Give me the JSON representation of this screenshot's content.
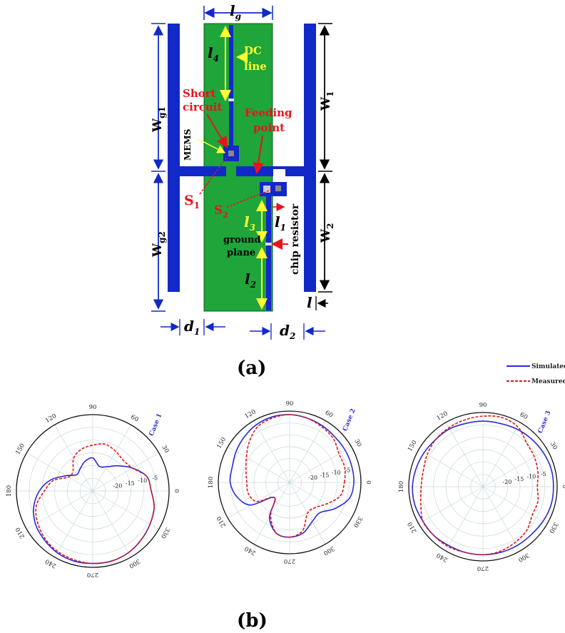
{
  "figure": {
    "panel_a_label": "(a)",
    "panel_b_label": "(b)",
    "dimensions": {
      "lg": "l",
      "lg_sub": "g",
      "l4": "l",
      "l4_sub": "4",
      "l3": "l",
      "l3_sub": "3",
      "l2": "l",
      "l2_sub": "2",
      "l1": "l",
      "l1_sub": "1",
      "l": "l",
      "wg1": "W",
      "wg1_sub": "g1",
      "wg2": "W",
      "wg2_sub": "g2",
      "w1": "W",
      "w1_sub": "1",
      "w2": "W",
      "w2_sub": "2",
      "d1": "d",
      "d1_sub": "1",
      "d2": "d",
      "d2_sub": "2"
    },
    "annotations": {
      "dc_line_1": "DC",
      "dc_line_2": "line",
      "short_circuit_1": "Short",
      "short_circuit_2": "circuit",
      "feeding_point_1": "Feeding",
      "feeding_point_2": "point",
      "mems": "MEMS",
      "s1": "S",
      "s1_sub": "1",
      "s2": "S",
      "s2_sub": "2",
      "ground_plane_1": "ground",
      "ground_plane_2": "plane",
      "chip_resistor": "chip resistor"
    },
    "colors": {
      "substrate_green": "#1fa53a",
      "metal_blue": "#1229c8",
      "label_red": "#e8141b",
      "label_yellow": "#ffff33",
      "simulated_line": "#2a2ad8",
      "measured_line": "#e01818"
    },
    "legend": {
      "simulated": "Simulated",
      "measured": "Measured"
    }
  },
  "chart_data": [
    {
      "type": "polar",
      "title": "Case 1",
      "angle_ticks": [
        "0",
        "30",
        "60",
        "90",
        "120",
        "150",
        "180",
        "210",
        "240",
        "270",
        "300",
        "330"
      ],
      "radial_ticks": [
        "-20",
        "-15",
        "-10",
        "-5"
      ],
      "rlim": [
        -30,
        0
      ],
      "grid": true,
      "series": [
        {
          "name": "Simulated",
          "angles_deg": [
            0,
            15,
            30,
            45,
            60,
            75,
            90,
            105,
            120,
            135,
            150,
            165,
            180,
            195,
            210,
            225,
            240,
            255,
            270,
            285,
            300,
            315,
            330,
            345
          ],
          "values_db": [
            -7,
            -8,
            -12,
            -16,
            -19,
            -20,
            -17,
            -18,
            -20,
            -21,
            -18,
            -13,
            -9,
            -6,
            -4,
            -3,
            -2,
            -1.5,
            -1.5,
            -1.5,
            -2,
            -3,
            -4,
            -5
          ]
        },
        {
          "name": "Measured",
          "angles_deg": [
            0,
            15,
            30,
            45,
            60,
            75,
            90,
            105,
            120,
            135,
            150,
            165,
            180,
            195,
            210,
            225,
            240,
            255,
            270,
            285,
            300,
            315,
            330,
            345
          ],
          "values_db": [
            -7,
            -8,
            -12,
            -13,
            -12,
            -11,
            -12,
            -13,
            -15,
            -19,
            -19,
            -14,
            -11,
            -7,
            -5,
            -3.5,
            -2.5,
            -2,
            -1.5,
            -1.5,
            -2,
            -3,
            -4,
            -5
          ]
        }
      ]
    },
    {
      "type": "polar",
      "title": "Case 2",
      "angle_ticks": [
        "0",
        "30",
        "60",
        "90",
        "120",
        "150",
        "180",
        "210",
        "240",
        "270",
        "300",
        "330"
      ],
      "radial_ticks": [
        "-20",
        "-15",
        "-10",
        "-5"
      ],
      "rlim": [
        -30,
        0
      ],
      "grid": true,
      "series": [
        {
          "name": "Simulated",
          "angles_deg": [
            0,
            15,
            30,
            45,
            60,
            75,
            90,
            105,
            120,
            135,
            150,
            165,
            180,
            195,
            210,
            225,
            240,
            255,
            270,
            285,
            300,
            315,
            330,
            345
          ],
          "values_db": [
            -3,
            -3,
            -3,
            -3,
            -2.5,
            -2,
            -1.5,
            -1.5,
            -2,
            -3,
            -4,
            -5,
            -5,
            -7,
            -11,
            -21,
            -13,
            -8,
            -7,
            -8,
            -11,
            -12,
            -8,
            -4
          ]
        },
        {
          "name": "Measured",
          "angles_deg": [
            0,
            15,
            30,
            45,
            60,
            75,
            90,
            105,
            120,
            135,
            150,
            165,
            180,
            195,
            210,
            225,
            240,
            255,
            270,
            285,
            300,
            315,
            330,
            345
          ],
          "values_db": [
            -7,
            -6,
            -6,
            -4,
            -3,
            -2,
            -1.5,
            -2,
            -3,
            -6,
            -9,
            -11,
            -12,
            -12,
            -14,
            -21,
            -14,
            -8,
            -7,
            -9,
            -15,
            -15,
            -12,
            -8
          ]
        }
      ]
    },
    {
      "type": "polar",
      "title": "Case 3",
      "angle_ticks": [
        "0",
        "30",
        "60",
        "90",
        "120",
        "150",
        "180",
        "210",
        "240",
        "270",
        "300",
        "330"
      ],
      "radial_ticks": [
        "-20",
        "-15",
        "-10",
        "-5"
      ],
      "rlim": [
        -30,
        0
      ],
      "grid": true,
      "series": [
        {
          "name": "Simulated",
          "angles_deg": [
            0,
            15,
            30,
            45,
            60,
            75,
            90,
            105,
            120,
            135,
            150,
            165,
            180,
            195,
            210,
            225,
            240,
            255,
            270,
            285,
            300,
            315,
            330,
            345
          ],
          "values_db": [
            -1.5,
            -1.5,
            -2,
            -2.5,
            -3,
            -3.5,
            -3.5,
            -3.5,
            -3,
            -3,
            -2.5,
            -2,
            -1.5,
            -1.5,
            -2,
            -2,
            -2.5,
            -2.5,
            -2.5,
            -2.5,
            -2.5,
            -2.5,
            -2,
            -1.5
          ]
        },
        {
          "name": "Measured",
          "angles_deg": [
            0,
            15,
            30,
            45,
            60,
            75,
            90,
            105,
            120,
            135,
            150,
            165,
            180,
            195,
            210,
            225,
            240,
            255,
            270,
            285,
            300,
            315,
            330,
            345
          ],
          "values_db": [
            -8,
            -7,
            -6,
            -5,
            -2,
            -1,
            -1.5,
            -2,
            -2.5,
            -3,
            -4,
            -5,
            -5,
            -4,
            -2,
            -2,
            -2,
            -2.5,
            -2.5,
            -3,
            -4,
            -5,
            -7,
            -7
          ]
        }
      ]
    }
  ]
}
